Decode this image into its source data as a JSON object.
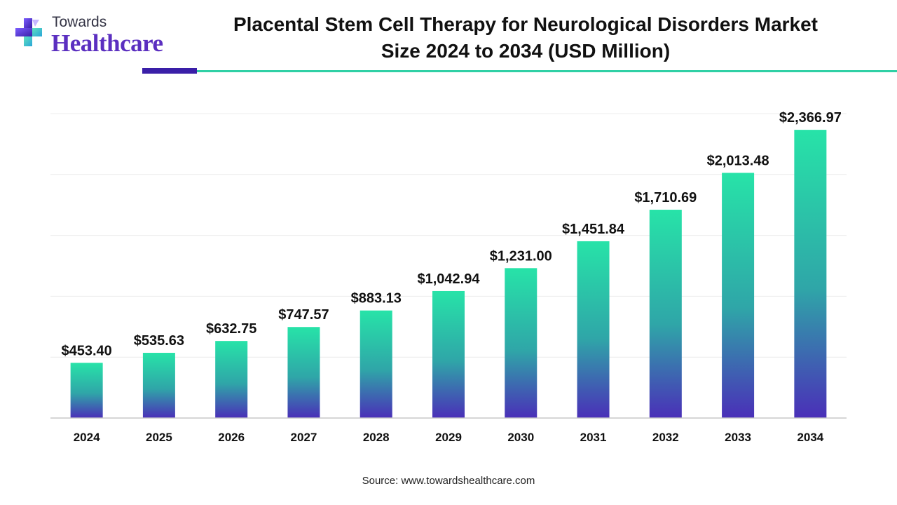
{
  "logo": {
    "line1": "Towards",
    "line2": "Healthcare"
  },
  "title": {
    "line1": "Placental Stem Cell Therapy for Neurological Disorders Market",
    "line2": "Size 2024 to 2034 (USD Million)"
  },
  "source": "Source: www.towardshealthcare.com",
  "colors": {
    "bar_top": "#27e3a8",
    "bar_mid": "#2fa6a8",
    "bar_bottom": "#4a2fb8",
    "accent_dark": "#3a1fa8",
    "accent_teal": "#2fd0a5",
    "brand_purple": "#5b2fc0"
  },
  "chart_data": {
    "type": "bar",
    "categories": [
      "2024",
      "2025",
      "2026",
      "2027",
      "2028",
      "2029",
      "2030",
      "2031",
      "2032",
      "2033",
      "2034"
    ],
    "values": [
      453.4,
      535.63,
      632.75,
      747.57,
      883.13,
      1042.94,
      1231.0,
      1451.84,
      1710.69,
      2013.48,
      2366.97
    ],
    "labels": [
      "$453.40",
      "$535.63",
      "$632.75",
      "$747.57",
      "$883.13",
      "$1,042.94",
      "$1,231.00",
      "$1,451.84",
      "$1,710.69",
      "$2,013.48",
      "$2,366.97"
    ],
    "ylim": [
      0,
      2500
    ],
    "grid": true,
    "legend": "none"
  }
}
